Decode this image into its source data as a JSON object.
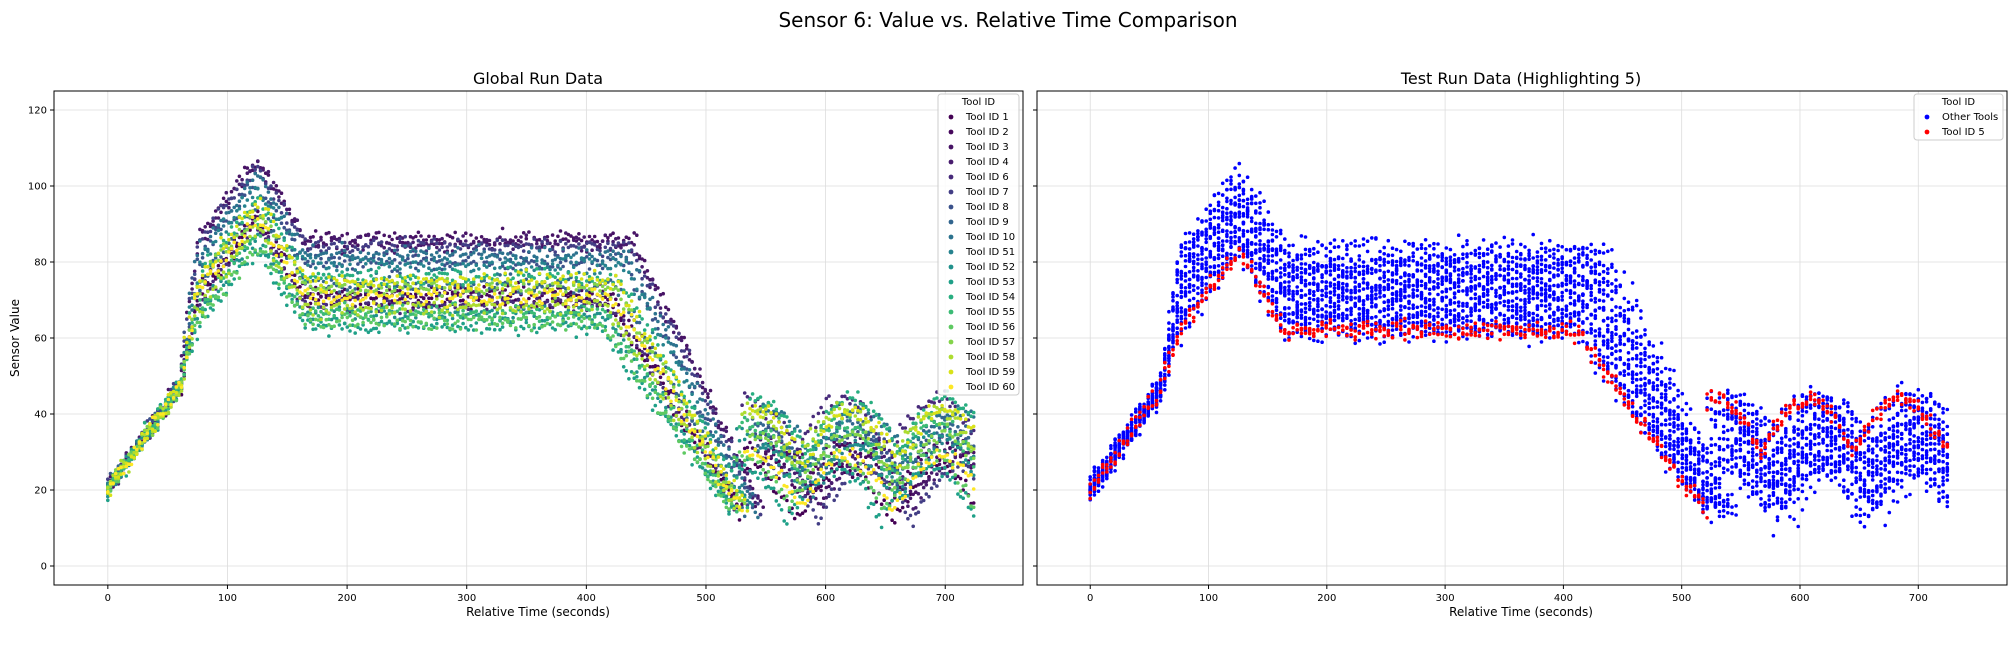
{
  "figure_title": "Sensor 6: Value vs. Relative Time Comparison",
  "chart_data": [
    {
      "type": "scatter",
      "title": "Global Run Data",
      "xlabel": "Relative Time (seconds)",
      "ylabel": "Sensor Value",
      "xlim": [
        -45,
        765
      ],
      "ylim": [
        -5,
        125
      ],
      "xticks": [
        0,
        100,
        200,
        300,
        400,
        500,
        600,
        700
      ],
      "yticks": [
        0,
        20,
        40,
        60,
        80,
        100,
        120
      ],
      "grid": true,
      "legend": {
        "title": "Tool ID",
        "placement": "top-right"
      },
      "series": [
        {
          "name": "Tool ID 1",
          "color": "#440154",
          "level": 70
        },
        {
          "name": "Tool ID 2",
          "color": "#46085c",
          "level": 72
        },
        {
          "name": "Tool ID 3",
          "color": "#471365",
          "level": 86
        },
        {
          "name": "Tool ID 4",
          "color": "#481c6e",
          "level": 85
        },
        {
          "name": "Tool ID 6",
          "color": "#472a7a",
          "level": 69
        },
        {
          "name": "Tool ID 7",
          "color": "#433e85",
          "level": 84
        },
        {
          "name": "Tool ID 8",
          "color": "#3b528b",
          "level": 80
        },
        {
          "name": "Tool ID 9",
          "color": "#32658e",
          "level": 74
        },
        {
          "name": "Tool ID 10",
          "color": "#2c728e",
          "level": 82
        },
        {
          "name": "Tool ID 51",
          "color": "#26828e",
          "level": 79
        },
        {
          "name": "Tool ID 52",
          "color": "#21918c",
          "level": 66
        },
        {
          "name": "Tool ID 53",
          "color": "#1fa088",
          "level": 63
        },
        {
          "name": "Tool ID 54",
          "color": "#28ae80",
          "level": 76
        },
        {
          "name": "Tool ID 55",
          "color": "#3bbb75",
          "level": 67
        },
        {
          "name": "Tool ID 56",
          "color": "#5ec962",
          "level": 64
        },
        {
          "name": "Tool ID 57",
          "color": "#84d44b",
          "level": 73
        },
        {
          "name": "Tool ID 58",
          "color": "#addc30",
          "level": 68
        },
        {
          "name": "Tool ID 59",
          "color": "#d8e219",
          "level": 75
        },
        {
          "name": "Tool ID 60",
          "color": "#fde725",
          "level": 71
        }
      ]
    },
    {
      "type": "scatter",
      "title": "Test Run Data (Highlighting 5)",
      "xlabel": "Relative Time (seconds)",
      "ylabel": "",
      "xlim": [
        -45,
        775
      ],
      "ylim": [
        -5,
        125
      ],
      "xticks": [
        0,
        100,
        200,
        300,
        400,
        500,
        600,
        700
      ],
      "yticks": [
        0,
        20,
        40,
        60,
        80,
        100,
        120
      ],
      "grid": true,
      "legend": {
        "title": "Tool ID",
        "placement": "top-right"
      },
      "series": [
        {
          "name": "Other Tools",
          "color": "#0000ff",
          "level": 75,
          "spread": 9
        },
        {
          "name": "Tool ID 5",
          "color": "#ff0000",
          "level": 62,
          "spread": 1
        }
      ]
    }
  ]
}
